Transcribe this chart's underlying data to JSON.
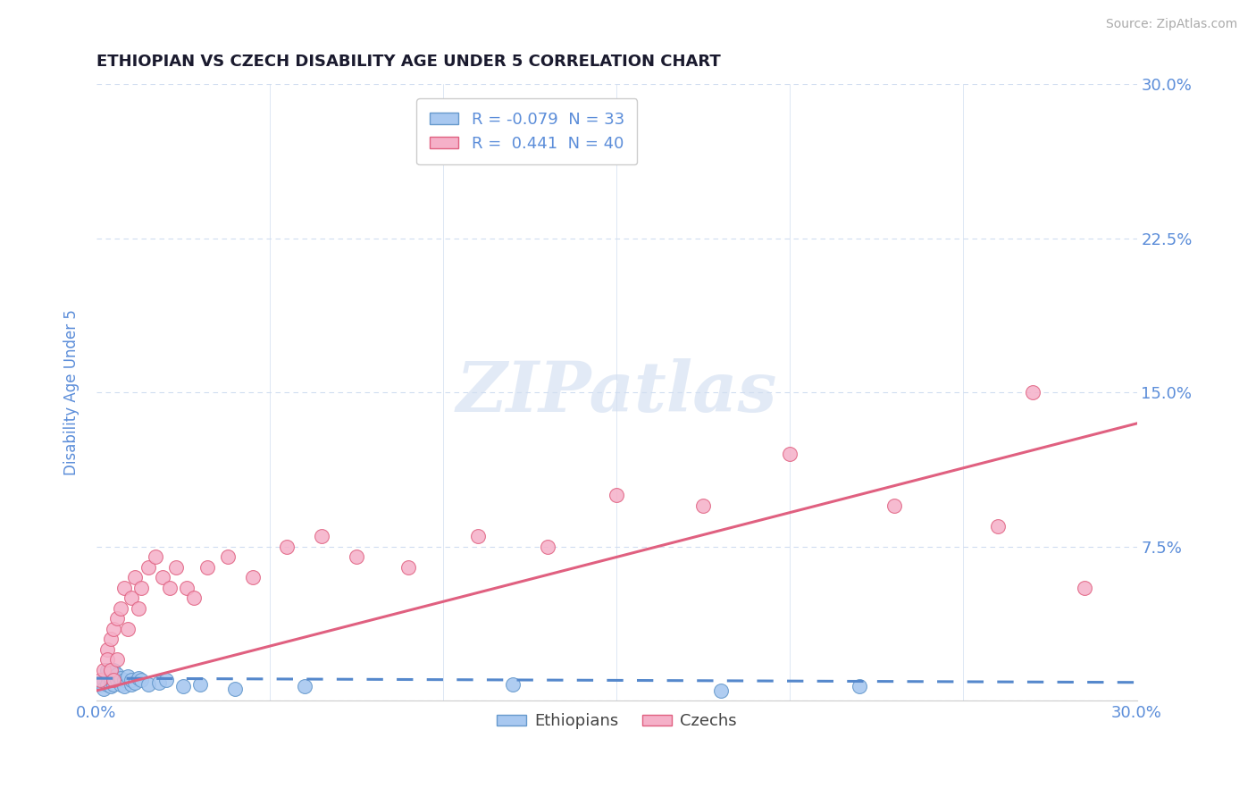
{
  "title": "ETHIOPIAN VS CZECH DISABILITY AGE UNDER 5 CORRELATION CHART",
  "source": "Source: ZipAtlas.com",
  "ylabel": "Disability Age Under 5",
  "xlim": [
    0.0,
    0.3
  ],
  "ylim": [
    0.0,
    0.3
  ],
  "ytick_positions": [
    0.0,
    0.075,
    0.15,
    0.225,
    0.3
  ],
  "ytick_labels_right": [
    "",
    "7.5%",
    "15.0%",
    "22.5%",
    "30.0%"
  ],
  "xtick_positions": [
    0.0,
    0.05,
    0.1,
    0.15,
    0.2,
    0.25,
    0.3
  ],
  "xtick_labels": [
    "0.0%",
    "",
    "",
    "",
    "",
    "",
    "30.0%"
  ],
  "title_color": "#1a1a2e",
  "source_color": "#aaaaaa",
  "axis_color": "#5b8dd9",
  "grid_color": "#d0ddf0",
  "background_color": "#ffffff",
  "watermark": "ZIPatlas",
  "watermark_color": "#d0ddf0",
  "eth_color": "#a8c8f0",
  "eth_edge_color": "#6699cc",
  "eth_line_color": "#5588cc",
  "cz_color": "#f5b0c8",
  "cz_edge_color": "#e06080",
  "cz_line_color": "#e06080",
  "eth_x": [
    0.001,
    0.002,
    0.002,
    0.003,
    0.003,
    0.003,
    0.004,
    0.004,
    0.005,
    0.005,
    0.005,
    0.006,
    0.006,
    0.007,
    0.007,
    0.008,
    0.008,
    0.009,
    0.01,
    0.01,
    0.011,
    0.012,
    0.013,
    0.015,
    0.018,
    0.02,
    0.025,
    0.03,
    0.04,
    0.06,
    0.12,
    0.18,
    0.22
  ],
  "eth_y": [
    0.008,
    0.01,
    0.006,
    0.012,
    0.008,
    0.015,
    0.01,
    0.007,
    0.012,
    0.008,
    0.015,
    0.01,
    0.013,
    0.008,
    0.011,
    0.01,
    0.007,
    0.012,
    0.008,
    0.01,
    0.009,
    0.011,
    0.01,
    0.008,
    0.009,
    0.01,
    0.007,
    0.008,
    0.006,
    0.007,
    0.008,
    0.005,
    0.007
  ],
  "cz_x": [
    0.001,
    0.002,
    0.003,
    0.003,
    0.004,
    0.004,
    0.005,
    0.005,
    0.006,
    0.006,
    0.007,
    0.008,
    0.009,
    0.01,
    0.011,
    0.012,
    0.013,
    0.015,
    0.017,
    0.019,
    0.021,
    0.023,
    0.026,
    0.028,
    0.032,
    0.038,
    0.045,
    0.055,
    0.065,
    0.075,
    0.09,
    0.11,
    0.13,
    0.15,
    0.175,
    0.2,
    0.23,
    0.26,
    0.27,
    0.285
  ],
  "cz_y": [
    0.01,
    0.015,
    0.025,
    0.02,
    0.03,
    0.015,
    0.035,
    0.01,
    0.02,
    0.04,
    0.045,
    0.055,
    0.035,
    0.05,
    0.06,
    0.045,
    0.055,
    0.065,
    0.07,
    0.06,
    0.055,
    0.065,
    0.055,
    0.05,
    0.065,
    0.07,
    0.06,
    0.075,
    0.08,
    0.07,
    0.065,
    0.08,
    0.075,
    0.1,
    0.095,
    0.12,
    0.095,
    0.085,
    0.15,
    0.055
  ],
  "eth_trend_x": [
    0.0,
    0.3
  ],
  "eth_trend_y": [
    0.011,
    0.009
  ],
  "cz_trend_x": [
    0.0,
    0.3
  ],
  "cz_trend_y": [
    0.005,
    0.135
  ]
}
